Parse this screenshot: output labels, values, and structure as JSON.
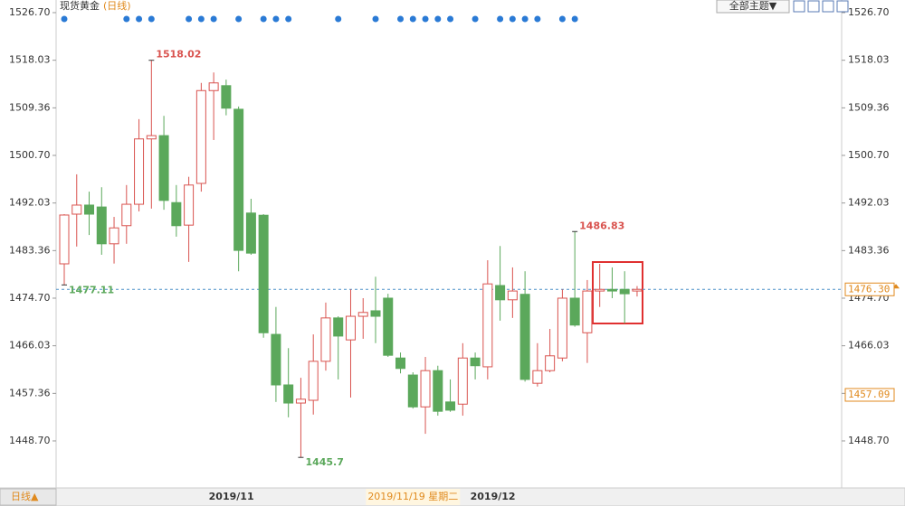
{
  "chart_data": {
    "type": "candlestick",
    "title": "现货黄金",
    "subtitle": "(日线)",
    "categories": [
      null,
      null,
      null,
      null,
      null,
      null,
      null,
      null,
      null,
      null,
      null,
      null,
      null,
      null,
      "2019/11",
      null,
      null,
      null,
      null,
      null,
      null,
      null,
      null,
      null,
      null,
      null,
      null,
      null,
      null,
      null,
      null,
      null,
      null,
      null,
      null,
      "2019/12",
      null,
      null,
      null,
      null,
      null,
      null,
      null,
      null,
      null,
      null,
      null
    ],
    "crosshair_label": "2019/11/19 星期二",
    "up_color": "#d9534f",
    "down_color": "#5ba85b",
    "open": [
      1480.95,
      1490.0,
      1491.65,
      1491.3,
      1484.6,
      1487.9,
      1491.8,
      1503.7,
      1504.3,
      1492.1,
      1488.0,
      1495.6,
      1512.5,
      1513.4,
      1509.1,
      1490.2,
      1489.8,
      1468.1,
      1458.9,
      1455.6,
      1456.1,
      1463.2,
      1471.1,
      1467.1,
      1471.4,
      1472.4,
      1474.7,
      1463.8,
      1460.7,
      1454.9,
      1461.5,
      1455.8,
      1455.4,
      1463.8,
      1462.2,
      1477.0,
      1474.4,
      1475.4,
      1459.2,
      1461.5,
      1463.8,
      1474.7,
      1468.4,
      1476.0,
      1476.3,
      1476.3,
      1476.0
    ],
    "high": [
      1490.0,
      1497.25,
      1494.1,
      1494.9,
      1489.5,
      1495.3,
      1507.3,
      1518.02,
      1507.9,
      1495.3,
      1496.8,
      1513.9,
      1515.8,
      1514.5,
      1509.6,
      1492.8,
      1490.0,
      1473.1,
      1465.6,
      1460.2,
      1468.1,
      1473.9,
      1471.4,
      1476.3,
      1474.7,
      1478.6,
      1475.5,
      1464.8,
      1461.2,
      1464.0,
      1462.4,
      1459.9,
      1466.5,
      1464.8,
      1481.6,
      1484.2,
      1480.3,
      1479.6,
      1466.5,
      1469.1,
      1476.3,
      1486.83,
      1478.0,
      1480.95,
      1480.3,
      1479.6,
      1476.9
    ],
    "low": [
      1477.11,
      1484.1,
      1486.2,
      1482.6,
      1481.0,
      1484.6,
      1490.5,
      1491.0,
      1490.8,
      1485.9,
      1481.3,
      1494.1,
      1503.5,
      1508.0,
      1479.6,
      1482.6,
      1467.5,
      1455.8,
      1453.0,
      1445.7,
      1453.5,
      1461.5,
      1459.9,
      1456.6,
      1467.3,
      1466.5,
      1464.0,
      1461.0,
      1454.6,
      1450.0,
      1453.3,
      1454.0,
      1453.3,
      1459.9,
      1459.9,
      1470.6,
      1471.1,
      1459.5,
      1458.6,
      1461.2,
      1463.2,
      1469.5,
      1462.9,
      1473.1,
      1474.7,
      1470.1,
      1475.0
    ],
    "close": [
      1489.84,
      1491.65,
      1490.0,
      1484.6,
      1487.5,
      1491.8,
      1503.7,
      1504.3,
      1492.5,
      1487.9,
      1495.3,
      1512.5,
      1513.9,
      1509.3,
      1483.4,
      1482.9,
      1468.4,
      1458.9,
      1455.6,
      1456.3,
      1463.2,
      1471.1,
      1467.8,
      1471.4,
      1472.1,
      1471.4,
      1464.3,
      1461.9,
      1454.9,
      1461.5,
      1454.1,
      1454.3,
      1463.8,
      1462.4,
      1477.3,
      1474.4,
      1476.0,
      1459.9,
      1461.5,
      1464.2,
      1474.7,
      1469.8,
      1476.0,
      1476.3,
      1476.0,
      1475.5,
      1476.3
    ],
    "annotations": [
      1518.02,
      1486.83,
      1477.11,
      1445.7
    ],
    "price_labels": [
      {
        "value": 1476.3,
        "label": "1476.30"
      },
      1457.09
    ],
    "ylim": [
      1440.14,
      1528.67
    ],
    "yticks": [
      {
        "value": 1526.7,
        "label": "1526.70"
      },
      1518.03,
      1509.36,
      {
        "value": 1500.7,
        "label": "1500.70"
      },
      1492.03,
      1483.36,
      {
        "value": 1474.7,
        "label": "1474.70"
      },
      1466.03,
      1457.36,
      {
        "value": 1448.7,
        "label": "1448.70"
      }
    ]
  },
  "ui": {
    "theme_button": "全部主题▼",
    "period_button": "日线▲"
  }
}
